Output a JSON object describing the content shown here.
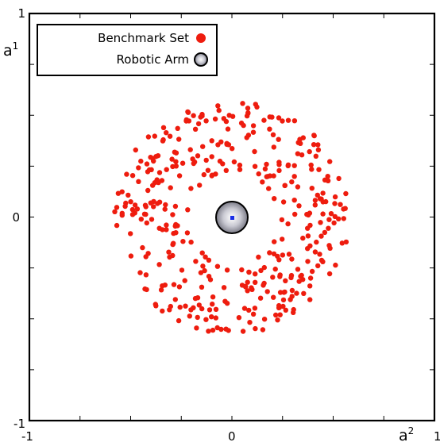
{
  "chart_data": {
    "type": "scatter",
    "title": "",
    "xlabel_base": "a",
    "xlabel_sup": "2",
    "ylabel_base": "a",
    "ylabel_sup": "1",
    "xlim": [
      -1,
      1
    ],
    "ylim": [
      -1,
      1
    ],
    "x_tick_labels": {
      "left": "-1",
      "center": "0",
      "right": "1"
    },
    "y_tick_labels": {
      "top": "1",
      "center": "0",
      "bottom": "-1"
    },
    "grid": false,
    "legend_placement": "top-left",
    "legend": [
      {
        "label": "Benchmark Set",
        "marker": "red-dot"
      },
      {
        "label": "Robotic Arm",
        "marker": "gray-sphere"
      }
    ],
    "series": [
      {
        "name": "Benchmark Set",
        "color": "#ee1c0e",
        "ring_count": 400,
        "r_min": 0.22,
        "r_max": 0.58,
        "center": [
          0,
          0
        ]
      },
      {
        "name": "Robotic Arm",
        "color": "#c8c8d0",
        "center": [
          0,
          0
        ],
        "radius": 0.07,
        "base_marker_color": "#1a2ee6"
      }
    ]
  }
}
